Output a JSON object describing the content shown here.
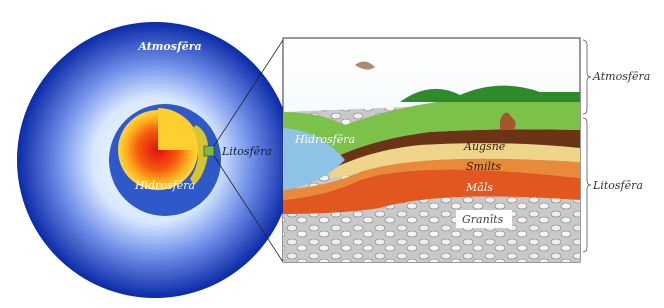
{
  "globe": {
    "atmosphere": "Atmosfēra",
    "hydrosphere": "Hidrosfēra",
    "lithosphere": "Litosfēra"
  },
  "panel": {
    "hydrosphere": "Hidrosfēra",
    "layers": [
      "Augsne",
      "Smilts",
      "Māls",
      "Granīts"
    ]
  },
  "brackets": {
    "atmosphere": "Atmosfēra",
    "lithosphere": "Litosfēra"
  }
}
